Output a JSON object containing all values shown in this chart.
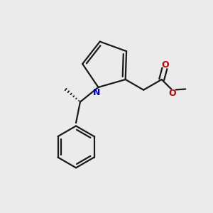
{
  "background_color": "#ebebeb",
  "bond_color": "#1a1a1a",
  "N_color": "#0000cc",
  "O_color": "#cc0000",
  "line_width": 1.6,
  "figsize": [
    3.0,
    3.0
  ],
  "dpi": 100,
  "xlim": [
    0.0,
    1.0
  ],
  "ylim": [
    0.0,
    1.0
  ]
}
